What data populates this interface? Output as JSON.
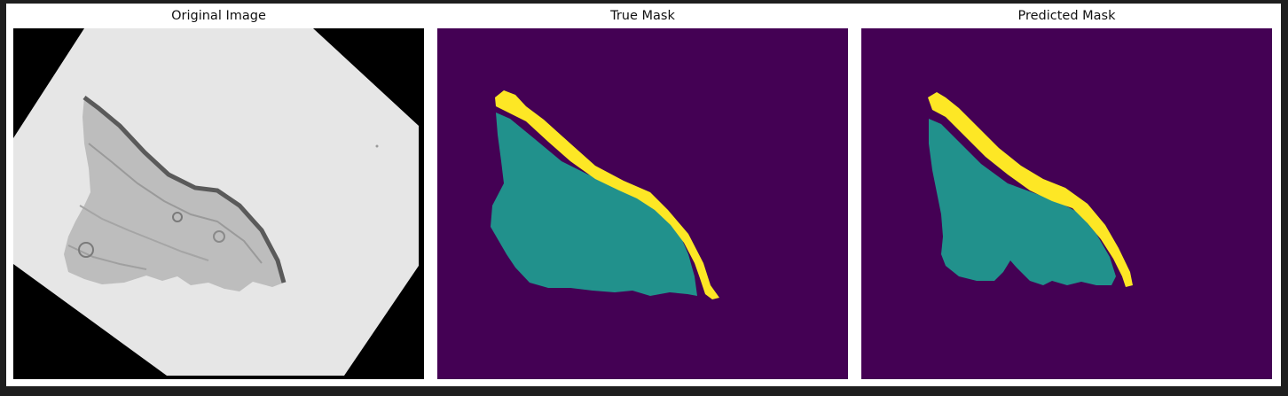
{
  "figure": {
    "panels": [
      {
        "title": "Original Image"
      },
      {
        "title": "True Mask"
      },
      {
        "title": "Predicted Mask"
      }
    ]
  },
  "colors": {
    "outer_background": "#1e1e1e",
    "figure_background": "#ffffff",
    "mask_background": "#440154",
    "mask_class_1": "#21918c",
    "mask_class_2": "#fde725",
    "image_background": "#000000",
    "slide_gray": "#e9e9e9",
    "tissue_dark": "#7f7f7f"
  }
}
